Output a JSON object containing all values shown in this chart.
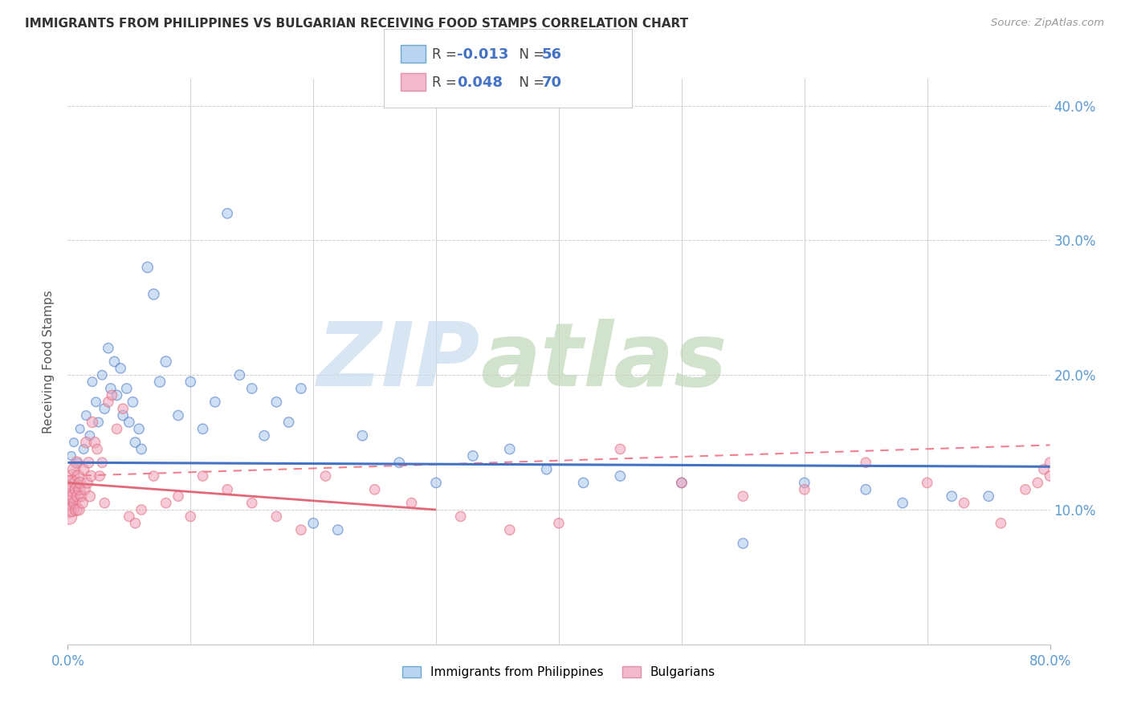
{
  "title": "IMMIGRANTS FROM PHILIPPINES VS BULGARIAN RECEIVING FOOD STAMPS CORRELATION CHART",
  "source": "Source: ZipAtlas.com",
  "ylabel": "Receiving Food Stamps",
  "legend_label1": "Immigrants from Philippines",
  "legend_label2": "Bulgarians",
  "r1": "-0.013",
  "n1": "56",
  "r2": "0.048",
  "n2": "70",
  "color_blue": "#A8C8EC",
  "color_pink": "#F0A0B8",
  "color_blue_line": "#4472C4",
  "color_pink_line": "#F08090",
  "color_pink_solid": "#E06878",
  "xlim": [
    0,
    80
  ],
  "ylim": [
    0,
    42
  ],
  "blue_line_y_start": 13.5,
  "blue_line_y_end": 13.2,
  "pink_solid_y_start": 10.5,
  "pink_solid_y_end": 10.5,
  "pink_dash_y_start": 12.5,
  "pink_dash_y_end": 14.8,
  "blue_scatter_x": [
    0.3,
    0.5,
    0.8,
    1.0,
    1.3,
    1.5,
    1.8,
    2.0,
    2.3,
    2.5,
    2.8,
    3.0,
    3.3,
    3.5,
    3.8,
    4.0,
    4.3,
    4.5,
    4.8,
    5.0,
    5.3,
    5.5,
    5.8,
    6.0,
    6.5,
    7.0,
    7.5,
    8.0,
    9.0,
    10.0,
    11.0,
    12.0,
    13.0,
    14.0,
    15.0,
    16.0,
    17.0,
    18.0,
    19.0,
    20.0,
    22.0,
    24.0,
    27.0,
    30.0,
    33.0,
    36.0,
    39.0,
    42.0,
    45.0,
    50.0,
    55.0,
    60.0,
    65.0,
    68.0,
    72.0,
    75.0
  ],
  "blue_scatter_y": [
    14.0,
    15.0,
    13.5,
    16.0,
    14.5,
    17.0,
    15.5,
    19.5,
    18.0,
    16.5,
    20.0,
    17.5,
    22.0,
    19.0,
    21.0,
    18.5,
    20.5,
    17.0,
    19.0,
    16.5,
    18.0,
    15.0,
    16.0,
    14.5,
    28.0,
    26.0,
    19.5,
    21.0,
    17.0,
    19.5,
    16.0,
    18.0,
    32.0,
    20.0,
    19.0,
    15.5,
    18.0,
    16.5,
    19.0,
    9.0,
    8.5,
    15.5,
    13.5,
    12.0,
    14.0,
    14.5,
    13.0,
    12.0,
    12.5,
    12.0,
    7.5,
    12.0,
    11.5,
    10.5,
    11.0,
    11.0
  ],
  "blue_scatter_size": [
    60,
    60,
    60,
    60,
    70,
    70,
    70,
    70,
    70,
    70,
    70,
    80,
    80,
    80,
    80,
    80,
    80,
    80,
    80,
    80,
    80,
    80,
    80,
    80,
    90,
    90,
    90,
    90,
    80,
    80,
    80,
    80,
    80,
    80,
    80,
    80,
    80,
    80,
    80,
    80,
    80,
    80,
    80,
    80,
    80,
    80,
    80,
    80,
    80,
    80,
    80,
    80,
    80,
    80,
    80,
    80
  ],
  "pink_scatter_x": [
    0.05,
    0.1,
    0.15,
    0.2,
    0.25,
    0.3,
    0.35,
    0.4,
    0.45,
    0.5,
    0.55,
    0.6,
    0.65,
    0.7,
    0.75,
    0.8,
    0.85,
    0.9,
    0.95,
    1.0,
    1.1,
    1.2,
    1.3,
    1.4,
    1.5,
    1.6,
    1.7,
    1.8,
    1.9,
    2.0,
    2.2,
    2.4,
    2.6,
    2.8,
    3.0,
    3.3,
    3.6,
    4.0,
    4.5,
    5.0,
    5.5,
    6.0,
    7.0,
    8.0,
    9.0,
    10.0,
    11.0,
    13.0,
    15.0,
    17.0,
    19.0,
    21.0,
    25.0,
    28.0,
    32.0,
    36.0,
    40.0,
    45.0,
    50.0,
    55.0,
    60.0,
    65.0,
    70.0,
    73.0,
    76.0,
    78.0,
    79.0,
    79.5,
    80.0,
    80.0
  ],
  "pink_scatter_y": [
    10.0,
    9.5,
    11.0,
    10.5,
    12.0,
    11.5,
    10.0,
    12.5,
    11.0,
    13.0,
    10.5,
    12.0,
    11.5,
    10.0,
    13.5,
    11.0,
    12.5,
    10.0,
    11.5,
    12.0,
    11.0,
    10.5,
    13.0,
    11.5,
    15.0,
    12.0,
    13.5,
    11.0,
    12.5,
    16.5,
    15.0,
    14.5,
    12.5,
    13.5,
    10.5,
    18.0,
    18.5,
    16.0,
    17.5,
    9.5,
    9.0,
    10.0,
    12.5,
    10.5,
    11.0,
    9.5,
    12.5,
    11.5,
    10.5,
    9.5,
    8.5,
    12.5,
    11.5,
    10.5,
    9.5,
    8.5,
    9.0,
    14.5,
    12.0,
    11.0,
    11.5,
    13.5,
    12.0,
    10.5,
    9.0,
    11.5,
    12.0,
    13.0,
    12.5,
    13.5
  ],
  "pink_scatter_size": [
    200,
    200,
    200,
    180,
    170,
    160,
    150,
    140,
    130,
    120,
    110,
    110,
    110,
    110,
    110,
    110,
    110,
    100,
    100,
    100,
    90,
    90,
    90,
    90,
    90,
    90,
    90,
    90,
    90,
    90,
    90,
    80,
    80,
    80,
    80,
    80,
    80,
    80,
    80,
    80,
    80,
    80,
    80,
    80,
    80,
    80,
    80,
    80,
    80,
    80,
    80,
    80,
    80,
    80,
    80,
    80,
    80,
    80,
    80,
    80,
    80,
    80,
    80,
    80,
    80,
    80,
    80,
    80,
    80,
    80
  ]
}
